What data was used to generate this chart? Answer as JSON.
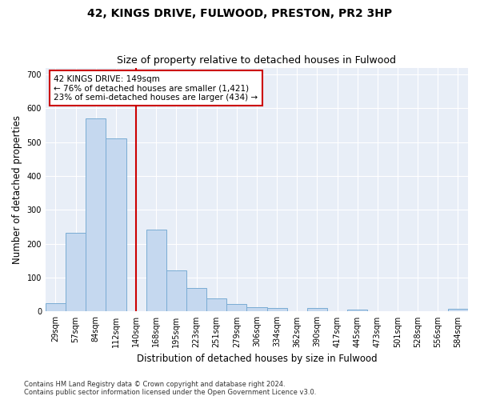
{
  "title": "42, KINGS DRIVE, FULWOOD, PRESTON, PR2 3HP",
  "subtitle": "Size of property relative to detached houses in Fulwood",
  "xlabel": "Distribution of detached houses by size in Fulwood",
  "ylabel": "Number of detached properties",
  "categories": [
    "29sqm",
    "57sqm",
    "84sqm",
    "112sqm",
    "140sqm",
    "168sqm",
    "195sqm",
    "223sqm",
    "251sqm",
    "279sqm",
    "306sqm",
    "334sqm",
    "362sqm",
    "390sqm",
    "417sqm",
    "445sqm",
    "473sqm",
    "501sqm",
    "528sqm",
    "556sqm",
    "584sqm"
  ],
  "values": [
    25,
    232,
    570,
    510,
    0,
    242,
    122,
    70,
    38,
    22,
    14,
    11,
    0,
    10,
    0,
    6,
    0,
    0,
    0,
    0,
    7
  ],
  "bar_color": "#c5d8ef",
  "bar_edge_color": "#7aacd4",
  "vline_x_index": 4,
  "vline_color": "#cc0000",
  "annotation_text": "42 KINGS DRIVE: 149sqm\n← 76% of detached houses are smaller (1,421)\n23% of semi-detached houses are larger (434) →",
  "annotation_box_color": "#ffffff",
  "annotation_box_edge": "#cc0000",
  "ylim": [
    0,
    720
  ],
  "yticks": [
    0,
    100,
    200,
    300,
    400,
    500,
    600,
    700
  ],
  "background_color": "#e8eef7",
  "footnote": "Contains HM Land Registry data © Crown copyright and database right 2024.\nContains public sector information licensed under the Open Government Licence v3.0.",
  "title_fontsize": 10,
  "subtitle_fontsize": 9,
  "xlabel_fontsize": 8.5,
  "ylabel_fontsize": 8.5,
  "tick_fontsize": 7,
  "annotation_fontsize": 7.5
}
